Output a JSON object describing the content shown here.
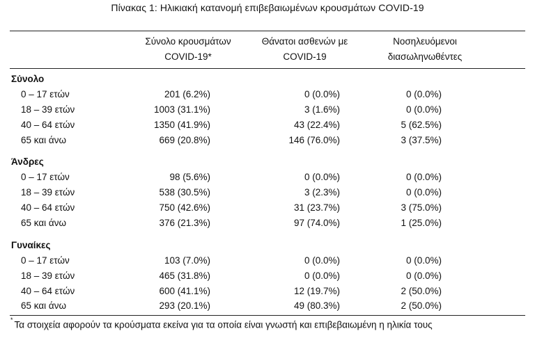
{
  "title": "Πίνακας 1: Ηλικιακή κατανομή επιβεβαιωμένων κρουσμάτων COVID-19",
  "headers": {
    "col1": [
      "Σύνολο κρουσμάτων",
      "COVID-19*"
    ],
    "col2": [
      "Θάνατοι ασθενών με",
      "COVID-19"
    ],
    "col3": [
      "Νοσηλευόμενοι",
      "διασωληνωθέντες"
    ]
  },
  "groups": [
    {
      "name": "Σύνολο",
      "rows": [
        {
          "age": "0 – 17 ετών",
          "cases": "201 (6.2%)",
          "deaths": "0 (0.0%)",
          "intubated": "0 (0.0%)"
        },
        {
          "age": "18 – 39 ετών",
          "cases": "1003 (31.1%)",
          "deaths": "3 (1.6%)",
          "intubated": "0 (0.0%)"
        },
        {
          "age": "40 – 64 ετών",
          "cases": "1350 (41.9%)",
          "deaths": "43 (22.4%)",
          "intubated": "5 (62.5%)"
        },
        {
          "age": "65 και άνω",
          "cases": "669 (20.8%)",
          "deaths": "146 (76.0%)",
          "intubated": "3 (37.5%)"
        }
      ]
    },
    {
      "name": "Άνδρες",
      "rows": [
        {
          "age": "0 – 17 ετών",
          "cases": "98 (5.6%)",
          "deaths": "0 (0.0%)",
          "intubated": "0 (0.0%)"
        },
        {
          "age": "18 – 39 ετών",
          "cases": "538 (30.5%)",
          "deaths": "3 (2.3%)",
          "intubated": "0 (0.0%)"
        },
        {
          "age": "40 – 64 ετών",
          "cases": "750 (42.6%)",
          "deaths": "31 (23.7%)",
          "intubated": "3 (75.0%)"
        },
        {
          "age": "65 και άνω",
          "cases": "376 (21.3%)",
          "deaths": "97 (74.0%)",
          "intubated": "1 (25.0%)"
        }
      ]
    },
    {
      "name": "Γυναίκες",
      "rows": [
        {
          "age": "0 – 17 ετών",
          "cases": "103 (7.0%)",
          "deaths": "0 (0.0%)",
          "intubated": "0 (0.0%)"
        },
        {
          "age": "18 – 39 ετών",
          "cases": "465 (31.8%)",
          "deaths": "0 (0.0%)",
          "intubated": "0 (0.0%)"
        },
        {
          "age": "40 – 64 ετών",
          "cases": "600 (41.1%)",
          "deaths": "12 (19.7%)",
          "intubated": "2 (50.0%)"
        },
        {
          "age": "65 και άνω",
          "cases": "293 (20.1%)",
          "deaths": "49 (80.3%)",
          "intubated": "2 (50.0%)"
        }
      ]
    }
  ],
  "footnote": {
    "mark": "*",
    "text": "Τα στοιχεία αφορούν τα κρούσματα εκείνα για τα οποία είναι γνωστή και επιβεβαιωμένη η ηλικία τους"
  }
}
